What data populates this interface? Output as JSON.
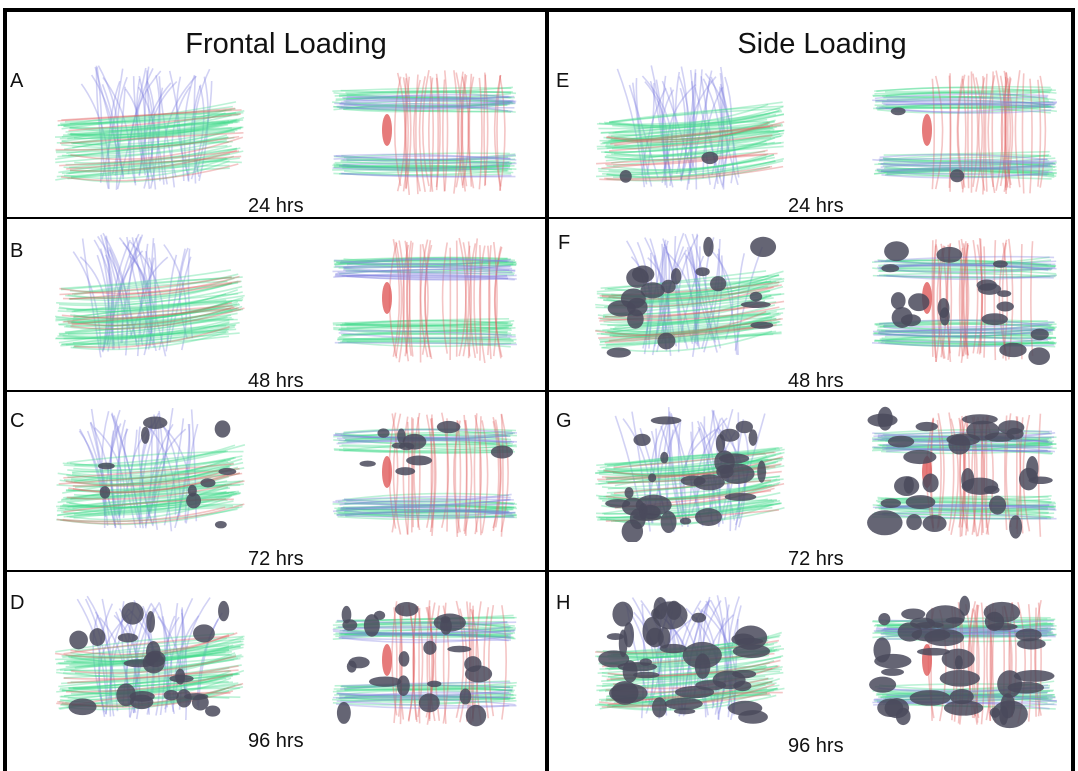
{
  "columns": [
    {
      "title": "Frontal Loading"
    },
    {
      "title": "Side Loading"
    }
  ],
  "panels": [
    {
      "letter": "A",
      "time": "24 hrs",
      "damage": 0.0
    },
    {
      "letter": "B",
      "time": "48 hrs",
      "damage": 0.0
    },
    {
      "letter": "C",
      "time": "72 hrs",
      "damage": 0.25
    },
    {
      "letter": "D",
      "time": "96 hrs",
      "damage": 0.55
    },
    {
      "letter": "E",
      "time": "24 hrs",
      "damage": 0.05
    },
    {
      "letter": "F",
      "time": "48 hrs",
      "damage": 0.45
    },
    {
      "letter": "G",
      "time": "72 hrs",
      "damage": 0.7
    },
    {
      "letter": "H",
      "time": "96 hrs",
      "damage": 0.9
    }
  ],
  "colors": {
    "fiber_green": "#3fd98a",
    "fiber_blue": "#7f7fe0",
    "fiber_red": "#e05a5a",
    "damage": "#4a4a5c",
    "border": "#000000"
  }
}
